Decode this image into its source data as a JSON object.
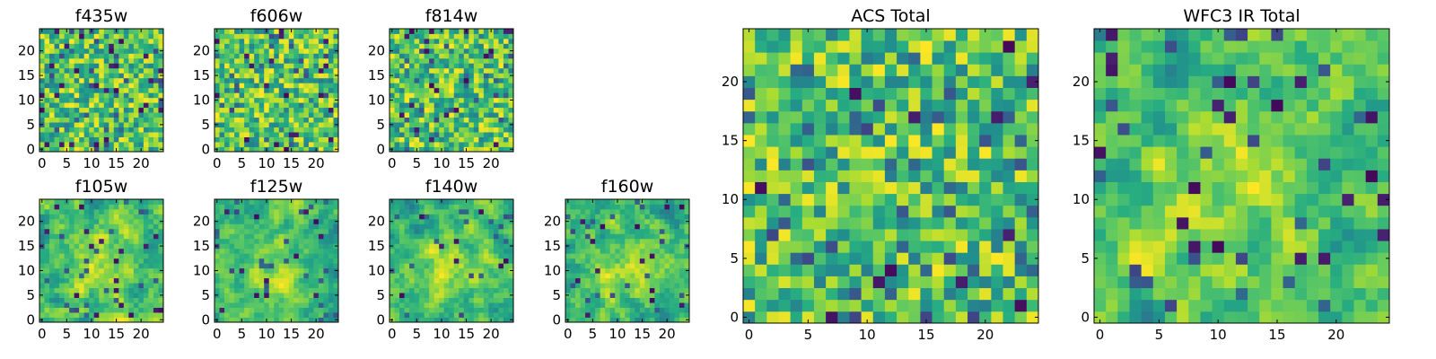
{
  "figure": {
    "colormap": "viridis",
    "grid_size": 25,
    "background": "#ffffff"
  },
  "chart_data": [
    {
      "id": "f435w",
      "type": "heatmap",
      "title": "f435w",
      "xticks": [
        0,
        5,
        10,
        15,
        20
      ],
      "yticks": [
        0,
        5,
        10,
        15,
        20
      ],
      "xlim": [
        0,
        25
      ],
      "ylim": [
        0,
        25
      ],
      "pattern": "noise",
      "colormap": "viridis"
    },
    {
      "id": "f606w",
      "type": "heatmap",
      "title": "f606w",
      "xticks": [
        0,
        5,
        10,
        15,
        20
      ],
      "yticks": [
        0,
        5,
        10,
        15,
        20
      ],
      "xlim": [
        0,
        25
      ],
      "ylim": [
        0,
        25
      ],
      "pattern": "noise",
      "colormap": "viridis"
    },
    {
      "id": "f814w",
      "type": "heatmap",
      "title": "f814w",
      "xticks": [
        0,
        5,
        10,
        15,
        20
      ],
      "yticks": [
        0,
        5,
        10,
        15,
        20
      ],
      "xlim": [
        0,
        25
      ],
      "ylim": [
        0,
        25
      ],
      "pattern": "noise",
      "colormap": "viridis"
    },
    {
      "id": "f105w",
      "type": "heatmap",
      "title": "f105w",
      "xticks": [
        0,
        5,
        10,
        15,
        20
      ],
      "yticks": [
        0,
        5,
        10,
        15,
        20
      ],
      "xlim": [
        0,
        25
      ],
      "ylim": [
        0,
        25
      ],
      "pattern": "smooth",
      "colormap": "viridis"
    },
    {
      "id": "f125w",
      "type": "heatmap",
      "title": "f125w",
      "xticks": [
        0,
        5,
        10,
        15,
        20
      ],
      "yticks": [
        0,
        5,
        10,
        15,
        20
      ],
      "xlim": [
        0,
        25
      ],
      "ylim": [
        0,
        25
      ],
      "pattern": "smooth",
      "colormap": "viridis"
    },
    {
      "id": "f140w",
      "type": "heatmap",
      "title": "f140w",
      "xticks": [
        0,
        5,
        10,
        15,
        20
      ],
      "yticks": [
        0,
        5,
        10,
        15,
        20
      ],
      "xlim": [
        0,
        25
      ],
      "ylim": [
        0,
        25
      ],
      "pattern": "smooth",
      "colormap": "viridis"
    },
    {
      "id": "f160w",
      "type": "heatmap",
      "title": "f160w",
      "xticks": [
        0,
        5,
        10,
        15,
        20
      ],
      "yticks": [
        0,
        5,
        10,
        15,
        20
      ],
      "xlim": [
        0,
        25
      ],
      "ylim": [
        0,
        25
      ],
      "pattern": "smooth",
      "colormap": "viridis"
    },
    {
      "id": "acs-total",
      "type": "heatmap",
      "title": "ACS Total",
      "xticks": [
        0,
        5,
        10,
        15,
        20
      ],
      "yticks": [
        0,
        5,
        10,
        15,
        20
      ],
      "xlim": [
        0,
        25
      ],
      "ylim": [
        0,
        25
      ],
      "pattern": "noise",
      "colormap": "viridis"
    },
    {
      "id": "wfc3-ir-total",
      "type": "heatmap",
      "title": "WFC3 IR Total",
      "xticks": [
        0,
        5,
        10,
        15,
        20
      ],
      "yticks": [
        0,
        5,
        10,
        15,
        20
      ],
      "xlim": [
        0,
        25
      ],
      "ylim": [
        0,
        25
      ],
      "pattern": "smooth",
      "colormap": "viridis"
    }
  ]
}
